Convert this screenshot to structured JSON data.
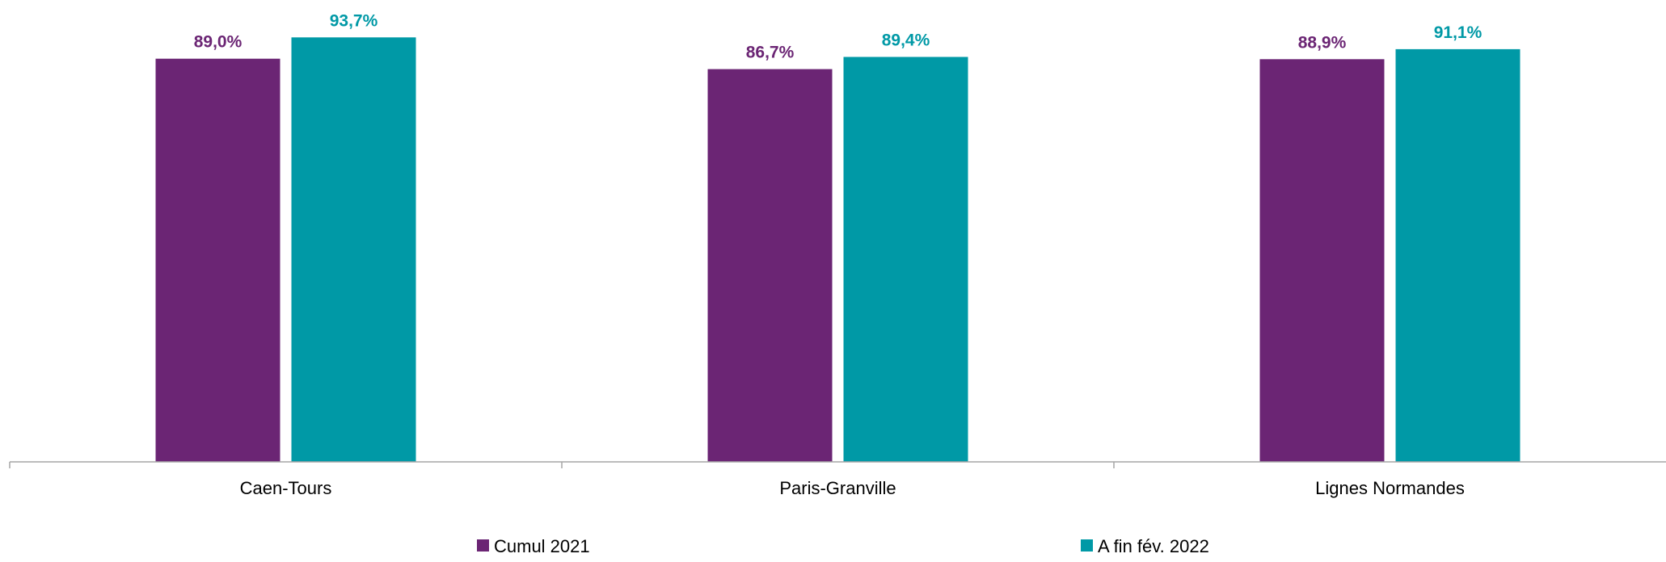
{
  "chart_data": {
    "type": "bar",
    "title": "",
    "xlabel": "",
    "ylabel": "",
    "categories": [
      "Caen-Tours",
      "Paris-Granville",
      "Lignes Normandes"
    ],
    "series": [
      {
        "name": "Cumul 2021",
        "color": "#6B2574",
        "values": [
          89.0,
          86.7,
          88.9
        ],
        "labels": [
          "89,0%",
          "86,7%",
          "88,9%"
        ]
      },
      {
        "name": "A fin fév. 2022",
        "color": "#0099A6",
        "values": [
          93.7,
          89.4,
          91.1
        ],
        "labels": [
          "93,7%",
          "89,4%",
          "91,1%"
        ]
      }
    ],
    "ylim": [
      0,
      100
    ],
    "grid": false,
    "legend_position": "bottom",
    "axis_color": "#A6A6A6"
  }
}
